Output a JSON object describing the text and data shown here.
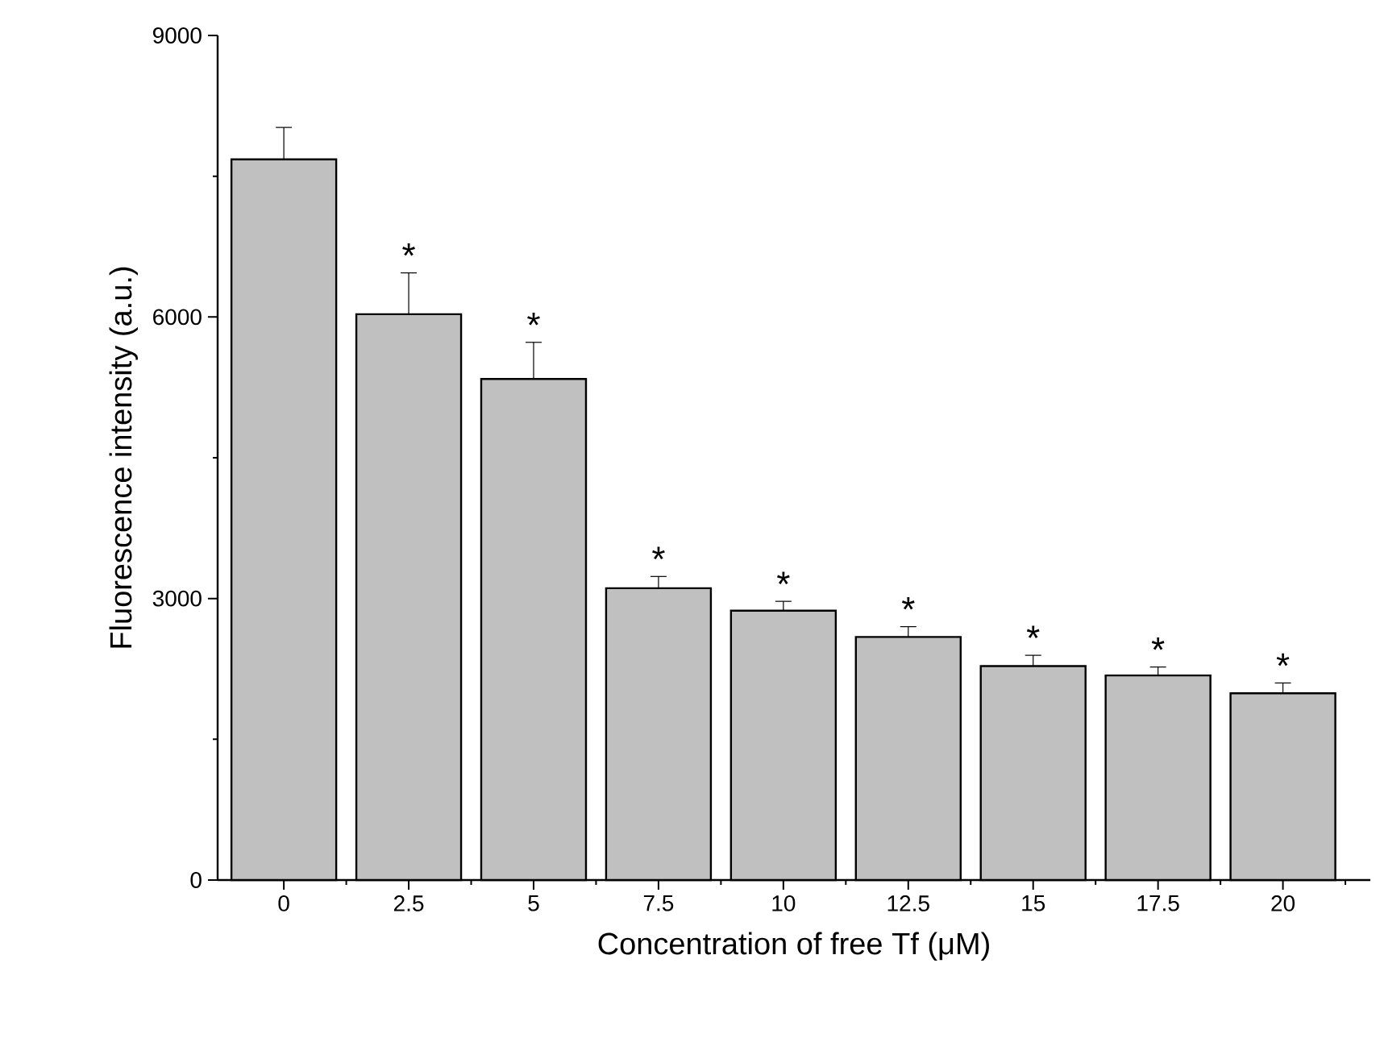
{
  "chart_data": {
    "type": "bar",
    "xlabel": "Concentration of free Tf (μM)",
    "ylabel": "Fluorescence intensity (a.u.)",
    "categories": [
      "0",
      "2.5",
      "5",
      "7.5",
      "10",
      "12.5",
      "15",
      "17.5",
      "20"
    ],
    "values": [
      7680,
      6030,
      5340,
      3110,
      2870,
      2590,
      2280,
      2180,
      1990
    ],
    "errors": [
      [
        7680,
        8020
      ],
      [
        6030,
        6470
      ],
      [
        5340,
        5730
      ],
      [
        3110,
        3235
      ],
      [
        2870,
        2970
      ],
      [
        2590,
        2700
      ],
      [
        2280,
        2395
      ],
      [
        2180,
        2270
      ],
      [
        1990,
        2100
      ]
    ],
    "color": "#c0c0c0",
    "ylim": [
      0,
      9000
    ],
    "yticks": [
      0,
      3000,
      6000,
      9000
    ],
    "grid": false,
    "annotations": [
      {
        "text": "*",
        "x": "2.5",
        "y": 6030
      },
      {
        "text": "*",
        "x": "5",
        "y": 5340
      },
      {
        "text": "*",
        "x": "7.5",
        "y": 3110
      },
      {
        "text": "*",
        "x": "10",
        "y": 2870
      },
      {
        "text": "*",
        "x": "12.5",
        "y": 2590
      },
      {
        "text": "*",
        "x": "15",
        "y": 2280
      },
      {
        "text": "*",
        "x": "17.5",
        "y": 2180
      },
      {
        "text": "*",
        "x": "20",
        "y": 1990
      }
    ]
  }
}
